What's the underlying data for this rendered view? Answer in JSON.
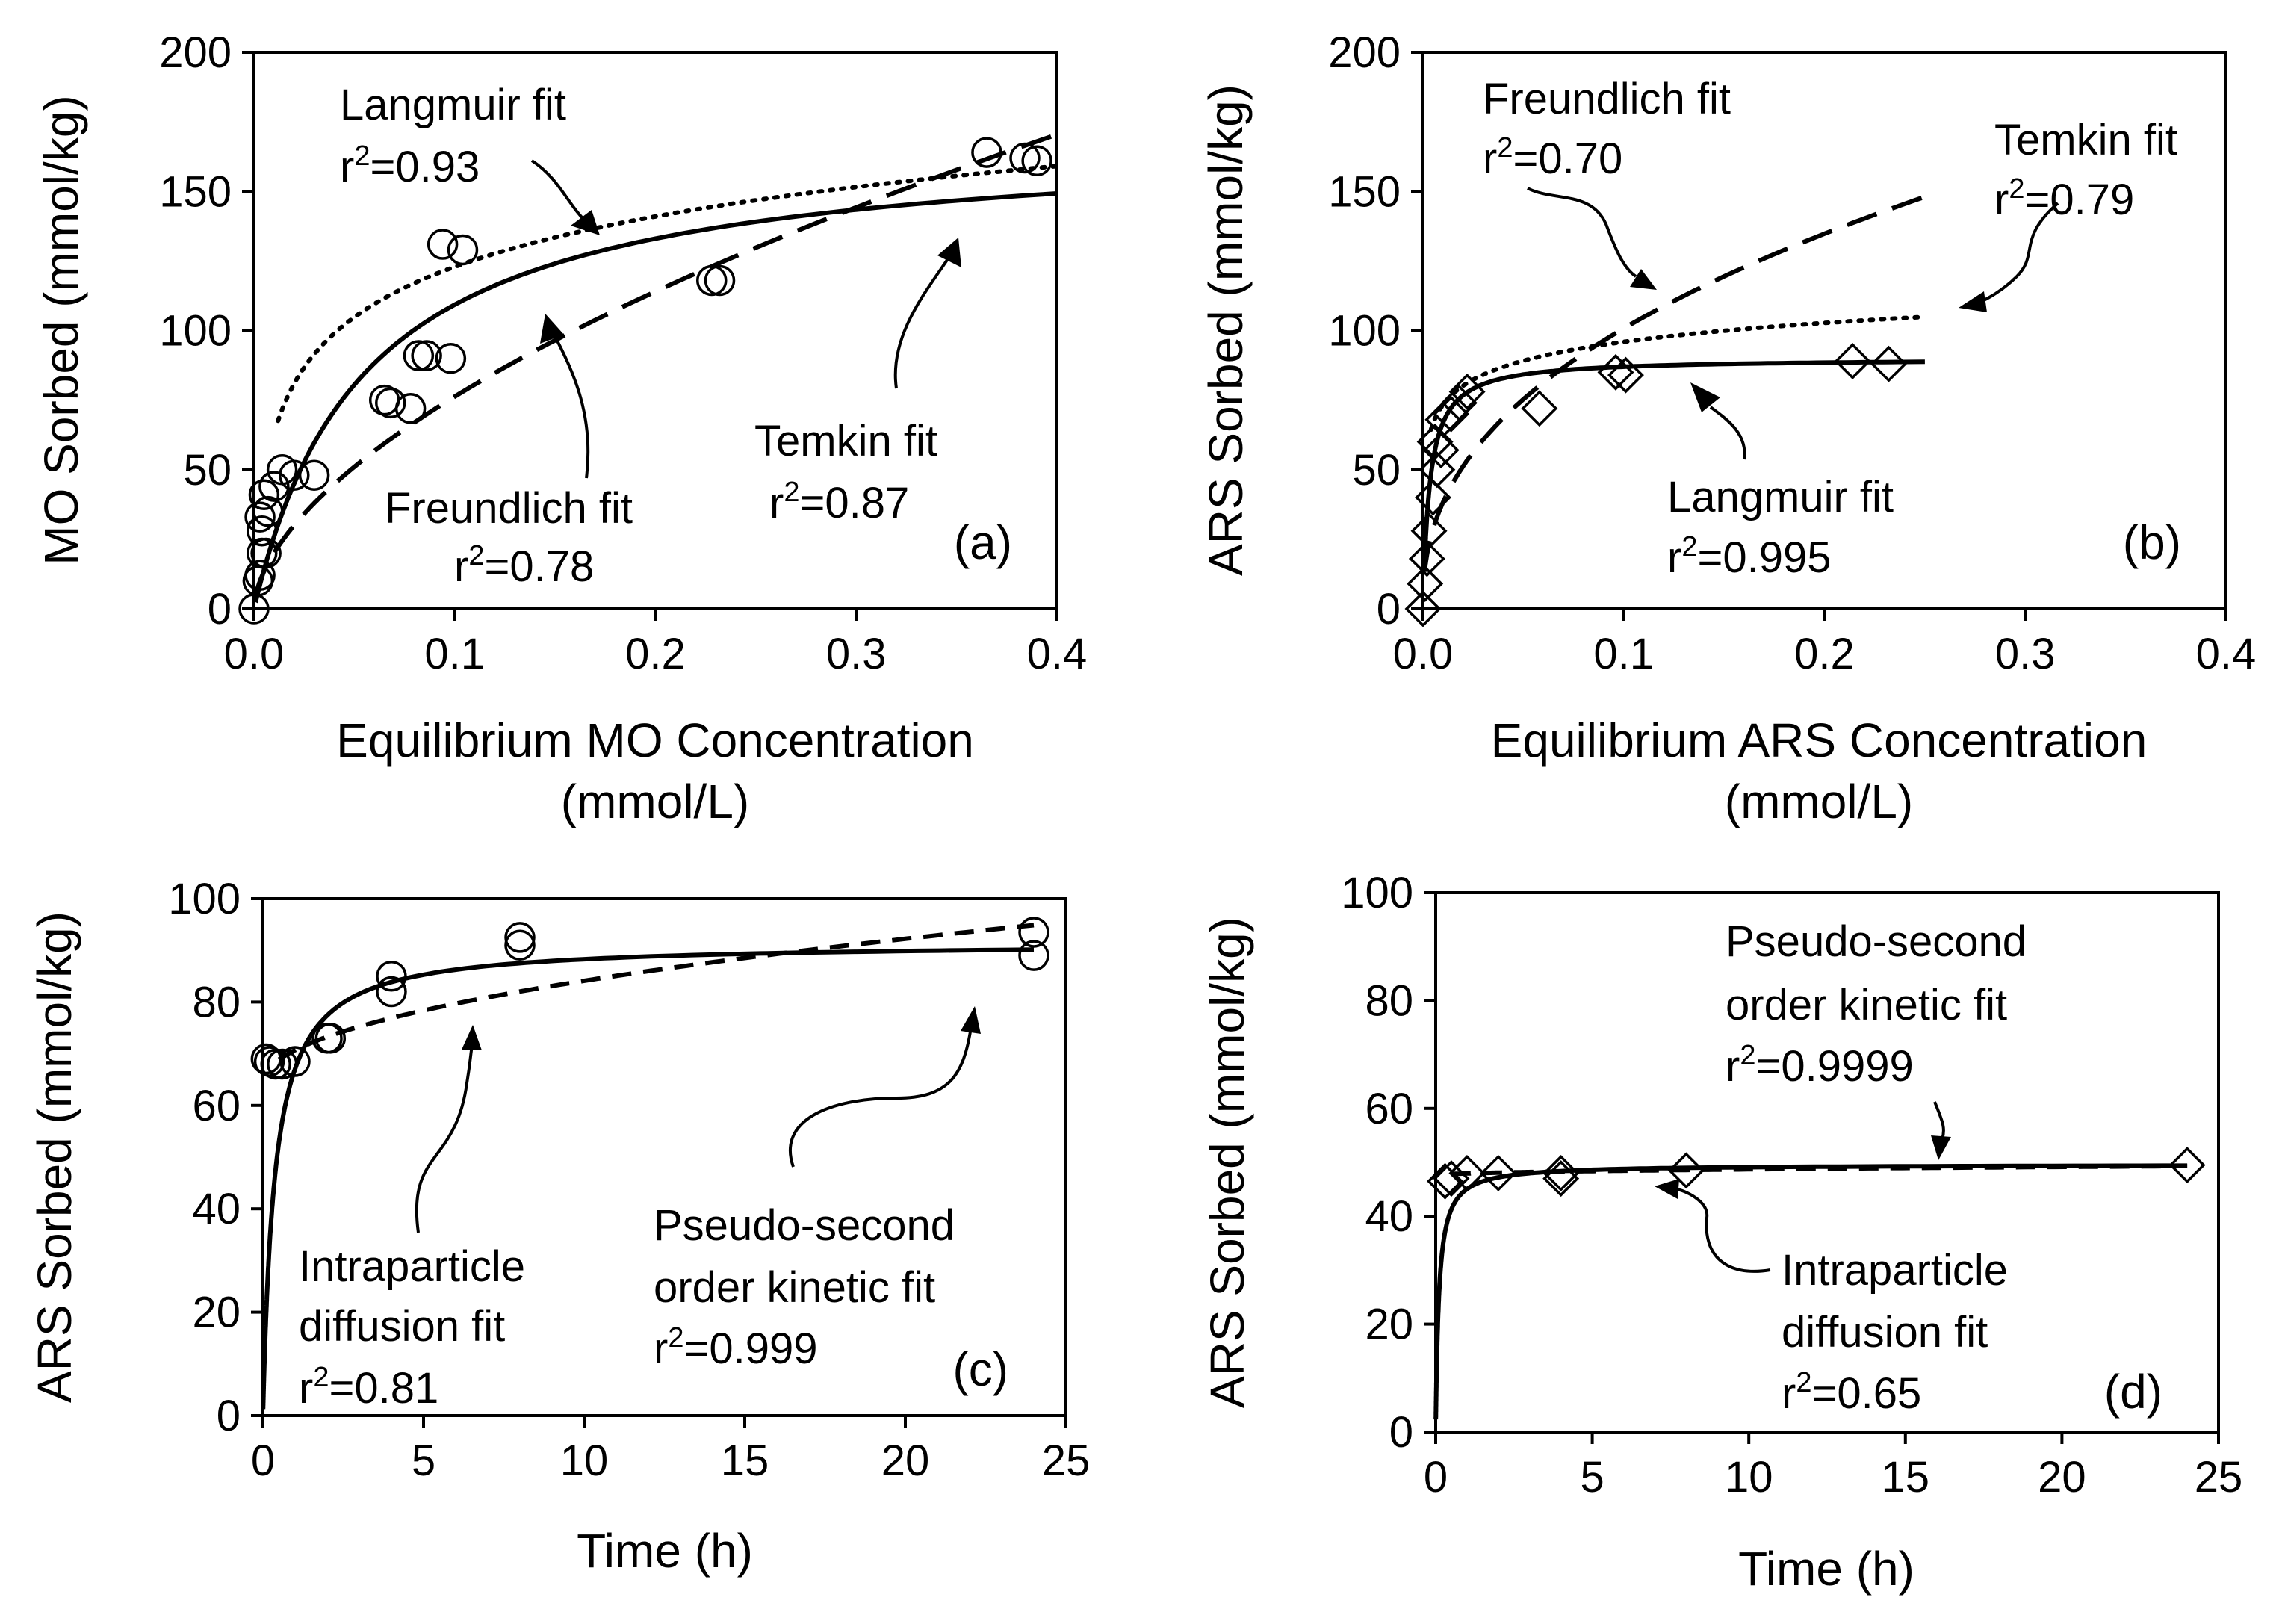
{
  "chart_data": [
    {
      "type": "scatter",
      "panel": "(a)",
      "xlabel_line1": "Equilibrium MO Concentration",
      "xlabel_line2": "(mmol/L)",
      "ylabel": "MO Sorbed (mmol/kg)",
      "xlim": [
        0,
        0.4
      ],
      "ylim": [
        0,
        200
      ],
      "xticks": [
        "0.0",
        "0.1",
        "0.2",
        "0.3",
        "0.4"
      ],
      "yticks": [
        "0",
        "50",
        "100",
        "150",
        "200"
      ],
      "xtick_values": [
        0,
        0.1,
        0.2,
        0.3,
        0.4
      ],
      "ytick_values": [
        0,
        50,
        100,
        150,
        200
      ],
      "marker": "circle",
      "points": [
        [
          0.0,
          0
        ],
        [
          0.002,
          10
        ],
        [
          0.003,
          12
        ],
        [
          0.004,
          20
        ],
        [
          0.006,
          20
        ],
        [
          0.004,
          28
        ],
        [
          0.003,
          33
        ],
        [
          0.007,
          35
        ],
        [
          0.005,
          41
        ],
        [
          0.01,
          44
        ],
        [
          0.014,
          50
        ],
        [
          0.02,
          48
        ],
        [
          0.03,
          48
        ],
        [
          0.065,
          75
        ],
        [
          0.068,
          74
        ],
        [
          0.078,
          72
        ],
        [
          0.082,
          91
        ],
        [
          0.086,
          91
        ],
        [
          0.098,
          90
        ],
        [
          0.094,
          131
        ],
        [
          0.104,
          129
        ],
        [
          0.228,
          118
        ],
        [
          0.232,
          118
        ],
        [
          0.365,
          164
        ],
        [
          0.384,
          162
        ],
        [
          0.39,
          161
        ]
      ],
      "fits": [
        {
          "name": "Langmuir fit",
          "r2": "0.93",
          "model": "langmuir",
          "qmax": 170,
          "K": 18,
          "style": "solid"
        },
        {
          "name": "Freundlich fit",
          "r2": "0.78",
          "model": "freundlich",
          "Kf": 290,
          "n": 0.58,
          "style": "longdash"
        },
        {
          "name": "Temkin fit",
          "r2": "0.87",
          "model": "temkin",
          "A": 183,
          "B": 26.1,
          "Kt": 140,
          "style": "dotted"
        }
      ]
    },
    {
      "type": "scatter",
      "panel": "(b)",
      "xlabel_line1": "Equilibrium ARS Concentration",
      "xlabel_line2": "(mmol/L)",
      "ylabel": "ARS Sorbed (mmol/kg)",
      "xlim": [
        0,
        0.4
      ],
      "ylim": [
        0,
        200
      ],
      "xticks": [
        "0.0",
        "0.1",
        "0.2",
        "0.3",
        "0.4"
      ],
      "yticks": [
        "0",
        "50",
        "100",
        "150",
        "200"
      ],
      "xtick_values": [
        0,
        0.1,
        0.2,
        0.3,
        0.4
      ],
      "ytick_values": [
        0,
        50,
        100,
        150,
        200
      ],
      "marker": "diamond",
      "points": [
        [
          0.0,
          0
        ],
        [
          0.001,
          9
        ],
        [
          0.002,
          18
        ],
        [
          0.003,
          28
        ],
        [
          0.005,
          40
        ],
        [
          0.007,
          50
        ],
        [
          0.006,
          60
        ],
        [
          0.009,
          57
        ],
        [
          0.01,
          68
        ],
        [
          0.014,
          70
        ],
        [
          0.018,
          74
        ],
        [
          0.022,
          78
        ],
        [
          0.058,
          72
        ],
        [
          0.096,
          85
        ],
        [
          0.101,
          84
        ],
        [
          0.214,
          89
        ],
        [
          0.232,
          88
        ]
      ],
      "fits": [
        {
          "name": "Freundlich fit",
          "r2": "0.70",
          "model": "freundlich",
          "Kf": 265,
          "n": 0.42,
          "style": "longdash"
        },
        {
          "name": "Temkin fit",
          "r2": "0.79",
          "model": "temkin",
          "A": 118.5,
          "B": 9.8,
          "Kt": 5000,
          "style": "dotted"
        },
        {
          "name": "Langmuir fit",
          "r2": "0.995",
          "model": "langmuir",
          "qmax": 90,
          "K": 290,
          "style": "solid"
        }
      ]
    },
    {
      "type": "scatter",
      "panel": "(c)",
      "xlabel_line1": "Time (h)",
      "ylabel": "ARS Sorbed (mmol/kg)",
      "xlim": [
        0,
        25
      ],
      "ylim": [
        0,
        100
      ],
      "xticks": [
        "0",
        "5",
        "10",
        "15",
        "20",
        "25"
      ],
      "yticks": [
        "0",
        "20",
        "40",
        "60",
        "80",
        "100"
      ],
      "xtick_values": [
        0,
        5,
        10,
        15,
        20,
        25
      ],
      "ytick_values": [
        0,
        20,
        40,
        60,
        80,
        100
      ],
      "marker": "circle",
      "points": [
        [
          0.1,
          69
        ],
        [
          0.2,
          68.5
        ],
        [
          0.4,
          68
        ],
        [
          0.6,
          68
        ],
        [
          1,
          68.5
        ],
        [
          2,
          73
        ],
        [
          2.1,
          73
        ],
        [
          4,
          82
        ],
        [
          4,
          85
        ],
        [
          8,
          91
        ],
        [
          8,
          92.5
        ],
        [
          24,
          89
        ],
        [
          24,
          93.5
        ]
      ],
      "fits": [
        {
          "name": "Intraparticle diffusion fit",
          "r2": "0.81",
          "model": "intraparticle",
          "a": 64.5,
          "b": 6.2,
          "style": "dashed"
        },
        {
          "name": "Pseudo-second order kinetic fit",
          "r2": "0.999",
          "model": "pso",
          "qe": 91.5,
          "k": 0.03,
          "style": "solid"
        }
      ]
    },
    {
      "type": "scatter",
      "panel": "(d)",
      "xlabel_line1": "Time (h)",
      "ylabel": "ARS Sorbed (mmol/kg)",
      "xlim": [
        0,
        25
      ],
      "ylim": [
        0,
        100
      ],
      "xticks": [
        "0",
        "5",
        "10",
        "15",
        "20",
        "25"
      ],
      "yticks": [
        "0",
        "20",
        "40",
        "60",
        "80",
        "100"
      ],
      "xtick_values": [
        0,
        5,
        10,
        15,
        20,
        25
      ],
      "ytick_values": [
        0,
        20,
        40,
        60,
        80,
        100
      ],
      "marker": "diamond",
      "points": [
        [
          0.3,
          46.5
        ],
        [
          0.5,
          47
        ],
        [
          1,
          48
        ],
        [
          2,
          48
        ],
        [
          4,
          47
        ],
        [
          4,
          48
        ],
        [
          8,
          48.5
        ],
        [
          24,
          49.5
        ]
      ],
      "fits": [
        {
          "name": "Intraparticle diffusion fit",
          "r2": "0.65",
          "model": "intraparticle",
          "a": 47.6,
          "b": 0.35,
          "style": "dashed"
        },
        {
          "name": "Pseudo-second order kinetic fit",
          "r2": "0.9999",
          "model": "pso",
          "qe": 49.6,
          "k": 0.2,
          "style": "solid"
        }
      ]
    }
  ],
  "annotations": {
    "a": {
      "langmuir_name": "Langmuir fit",
      "langmuir_r2": "=0.93",
      "freundlich_name": "Freundlich fit",
      "freundlich_r2": "=0.78",
      "temkin_name": "Temkin fit",
      "temkin_r2": "=0.87"
    },
    "b": {
      "freundlich_name": "Freundlich fit",
      "freundlich_r2": "=0.70",
      "temkin_name": "Temkin fit",
      "temkin_r2": "=0.79",
      "langmuir_name": "Langmuir fit",
      "langmuir_r2": "=0.995"
    },
    "c": {
      "ipd_line1": "Intraparticle",
      "ipd_line2": "diffusion fit",
      "ipd_r2": "=0.81",
      "pso_line1": "Pseudo-second",
      "pso_line2": "order kinetic fit",
      "pso_r2": "=0.999"
    },
    "d": {
      "pso_line1": "Pseudo-second",
      "pso_line2": "order kinetic fit",
      "pso_r2": "=0.9999",
      "ipd_line1": "Intraparticle",
      "ipd_line2": "diffusion fit",
      "ipd_r2": "=0.65"
    },
    "r_symbol": "r",
    "superscript": "2"
  }
}
